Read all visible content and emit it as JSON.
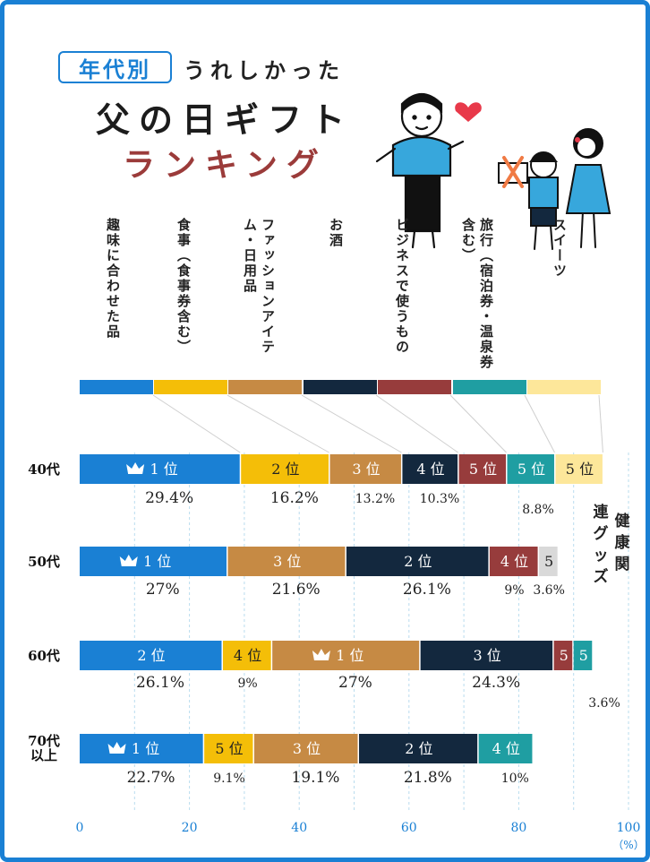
{
  "header": {
    "badge": "年代別",
    "subtitle": "うれしかった",
    "title": "父の日ギフト",
    "ranking": "ランキング"
  },
  "categories": [
    {
      "label": "趣味に合わせた品",
      "color": "#1a80d4"
    },
    {
      "label": "食事（食事券含む）",
      "color": "#f4be08"
    },
    {
      "label": "ファッションアイテム・日用品",
      "color": "#c68a44"
    },
    {
      "label": "お酒",
      "color": "#13283e"
    },
    {
      "label": "ビジネスで使うもの",
      "color": "#973c3c"
    },
    {
      "label": "旅行（宿泊券・温泉券含む）",
      "color": "#1f9ea2"
    },
    {
      "label": "スイーツ",
      "color": "#fde79a"
    }
  ],
  "extra_category": {
    "label": "健康関連グッズ",
    "color": "#d9d9d9"
  },
  "rank_suffix": "位",
  "chart_data": {
    "type": "bar",
    "orientation": "horizontal",
    "stacked": true,
    "xlim": [
      0,
      100
    ],
    "x_ticks": [
      "0",
      "20",
      "40",
      "60",
      "80",
      "100"
    ],
    "x_unit": "（%）",
    "rows": [
      {
        "label": "40代",
        "segments": [
          {
            "category": "趣味に合わせた品",
            "value": 29.4,
            "rank": 1,
            "value_label": "29.4%"
          },
          {
            "category": "食事（食事券含む）",
            "value": 16.2,
            "rank": 2,
            "value_label": "16.2%"
          },
          {
            "category": "ファッションアイテム・日用品",
            "value": 13.2,
            "rank": 3,
            "value_label": "13.2%"
          },
          {
            "category": "お酒",
            "value": 10.3,
            "rank": 4,
            "value_label": "10.3%"
          },
          {
            "category": "ビジネスで使うもの",
            "value": 8.8,
            "rank": 5
          },
          {
            "category": "旅行（宿泊券・温泉券含む）",
            "value": 8.8,
            "rank": 5
          },
          {
            "category": "スイーツ",
            "value": 8.8,
            "rank": 5
          }
        ],
        "shared_label": "8.8%"
      },
      {
        "label": "50代",
        "segments": [
          {
            "category": "趣味に合わせた品",
            "value": 27,
            "rank": 1,
            "value_label": "27%"
          },
          {
            "category": "ファッションアイテム・日用品",
            "value": 21.6,
            "rank": 3,
            "value_label": "21.6%"
          },
          {
            "category": "お酒",
            "value": 26.1,
            "rank": 2,
            "value_label": "26.1%"
          },
          {
            "category": "ビジネスで使うもの",
            "value": 9,
            "rank": 4,
            "value_label": "9%"
          },
          {
            "category": "健康関連グッズ",
            "value": 3.6,
            "rank": 5,
            "value_label": "3.6%"
          }
        ]
      },
      {
        "label": "60代",
        "segments": [
          {
            "category": "趣味に合わせた品",
            "value": 26.1,
            "rank": 2,
            "value_label": "26.1%"
          },
          {
            "category": "食事（食事券含む）",
            "value": 9,
            "rank": 4,
            "value_label": "9%"
          },
          {
            "category": "ファッションアイテム・日用品",
            "value": 27,
            "rank": 1,
            "value_label": "27%"
          },
          {
            "category": "お酒",
            "value": 24.3,
            "rank": 3,
            "value_label": "24.3%"
          },
          {
            "category": "ビジネスで使うもの",
            "value": 3.6,
            "rank": 5
          },
          {
            "category": "旅行（宿泊券・温泉券含む）",
            "value": 3.6,
            "rank": 5
          }
        ],
        "shared_label": "3.6%"
      },
      {
        "label": "70代\n以上",
        "segments": [
          {
            "category": "趣味に合わせた品",
            "value": 22.7,
            "rank": 1,
            "value_label": "22.7%"
          },
          {
            "category": "食事（食事券含む）",
            "value": 9.1,
            "rank": 5,
            "value_label": "9.1%"
          },
          {
            "category": "ファッションアイテム・日用品",
            "value": 19.1,
            "rank": 3,
            "value_label": "19.1%"
          },
          {
            "category": "お酒",
            "value": 21.8,
            "rank": 2,
            "value_label": "21.8%"
          },
          {
            "category": "旅行（宿泊券・温泉券含む）",
            "value": 10,
            "rank": 4,
            "value_label": "10%"
          }
        ]
      }
    ]
  }
}
